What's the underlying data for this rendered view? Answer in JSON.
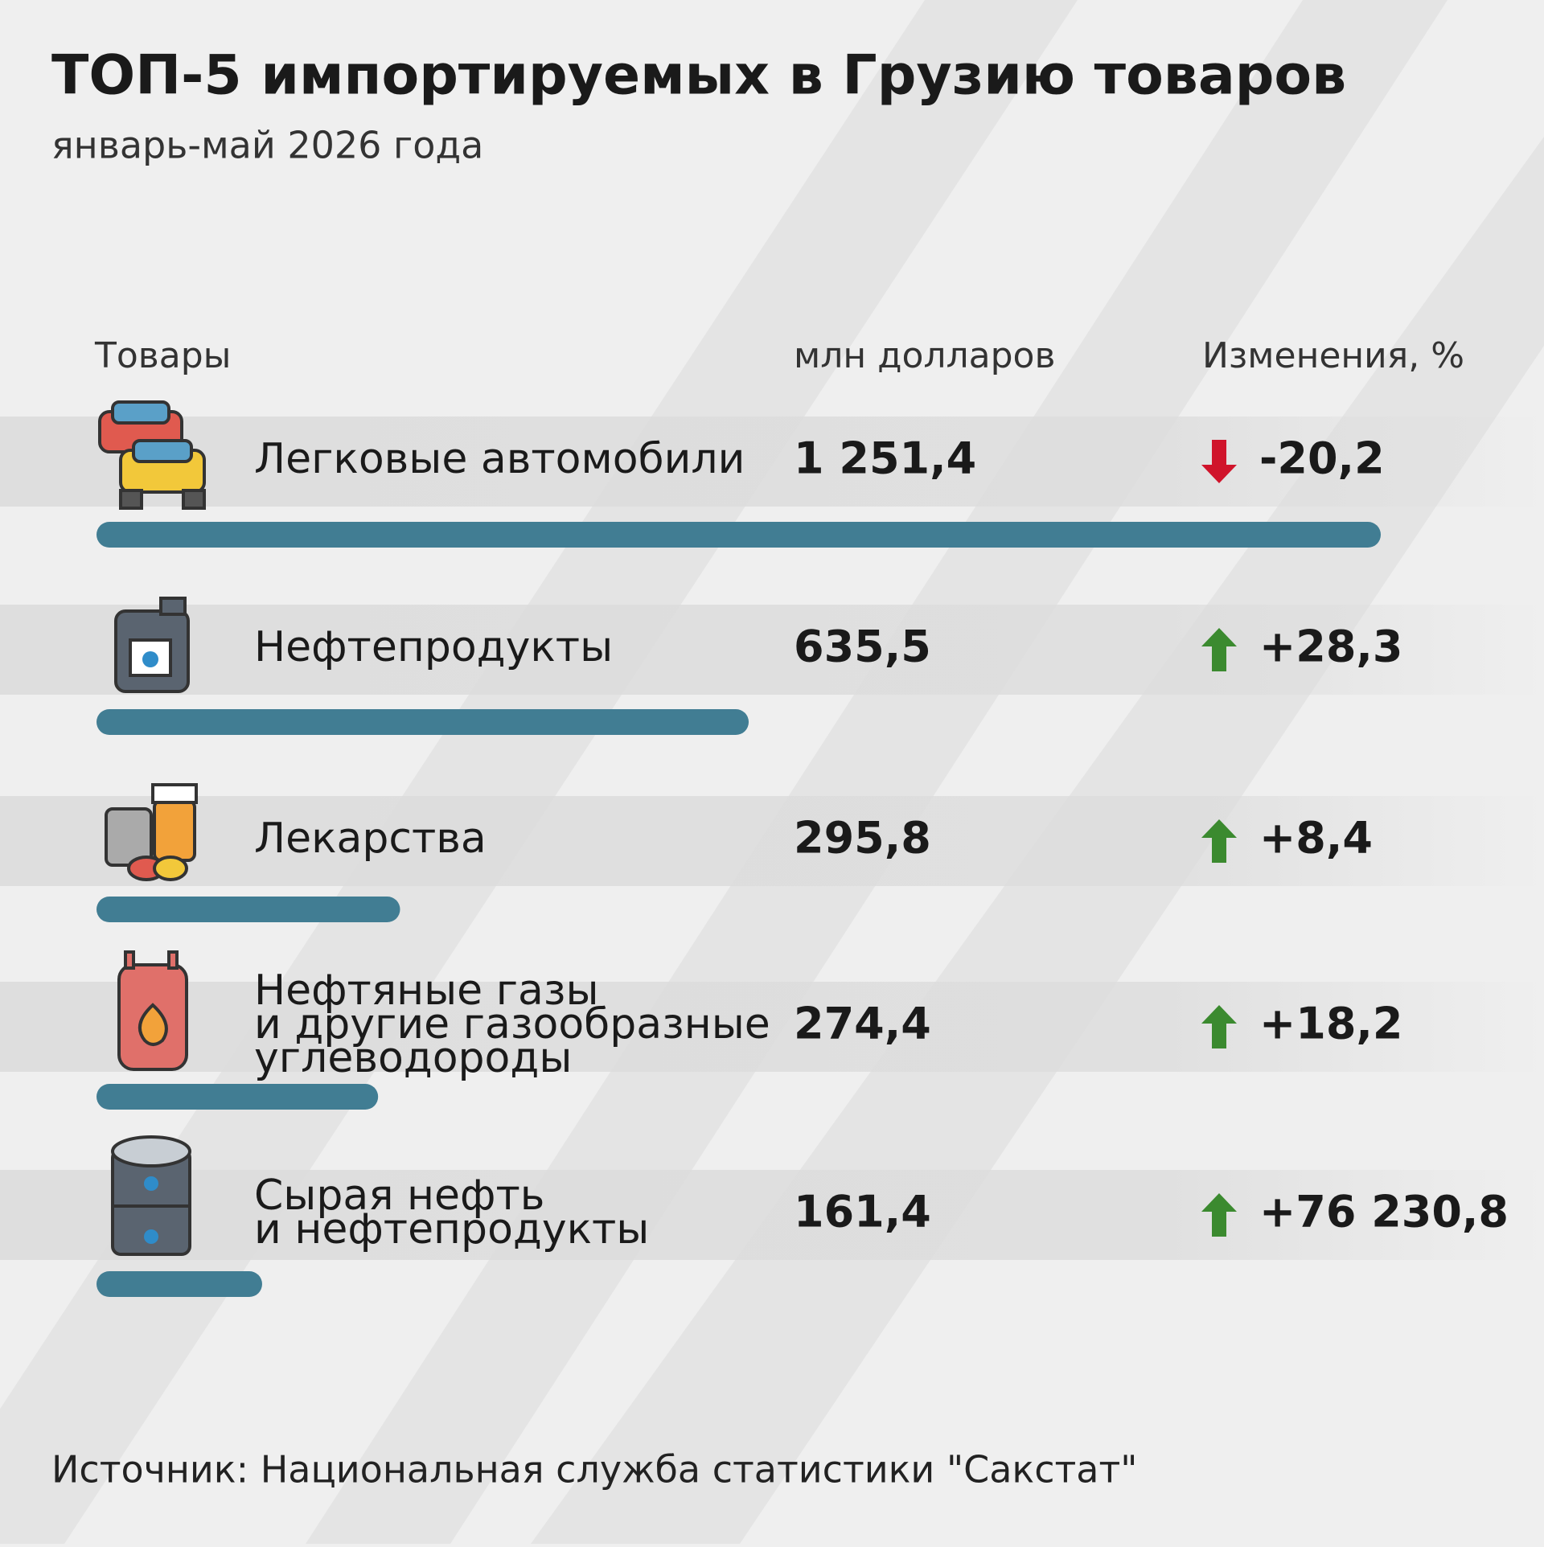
{
  "chart_data": {
    "type": "bar",
    "title": "ТОП-5 импортируемых в Грузию товаров",
    "subtitle": "январь-май 2026 года",
    "categories_label": "Товары",
    "categories": [
      "Легковые автомобили",
      "Нефтепродукты",
      "Лекарства",
      [
        "Нефтяные газы",
        "и другие газообразные",
        "углеводороды"
      ],
      [
        "Сырая нефть",
        "и нефтепродукты"
      ]
    ],
    "series": [
      {
        "name": "млн долларов",
        "color": "#417d93",
        "values": [
          1251.4,
          635.5,
          295.8,
          274.4,
          161.4
        ],
        "value_labels": [
          "1 251,4",
          "635,5",
          "295,8",
          "274,4",
          "161,4"
        ]
      },
      {
        "name": "Изменения, %",
        "values": [
          -20.2,
          28.3,
          8.4,
          18.2,
          76230.8
        ],
        "value_labels": [
          "-20,2",
          "+28,3",
          "+8,4",
          "+18,2",
          "+76 230,8"
        ]
      }
    ],
    "change_colors": {
      "up": "#3b8a2f",
      "down": "#d0142b"
    },
    "xlim": [
      0,
      1260
    ],
    "source": "Источник: Национальная служба статистики \"Сакстат\""
  }
}
